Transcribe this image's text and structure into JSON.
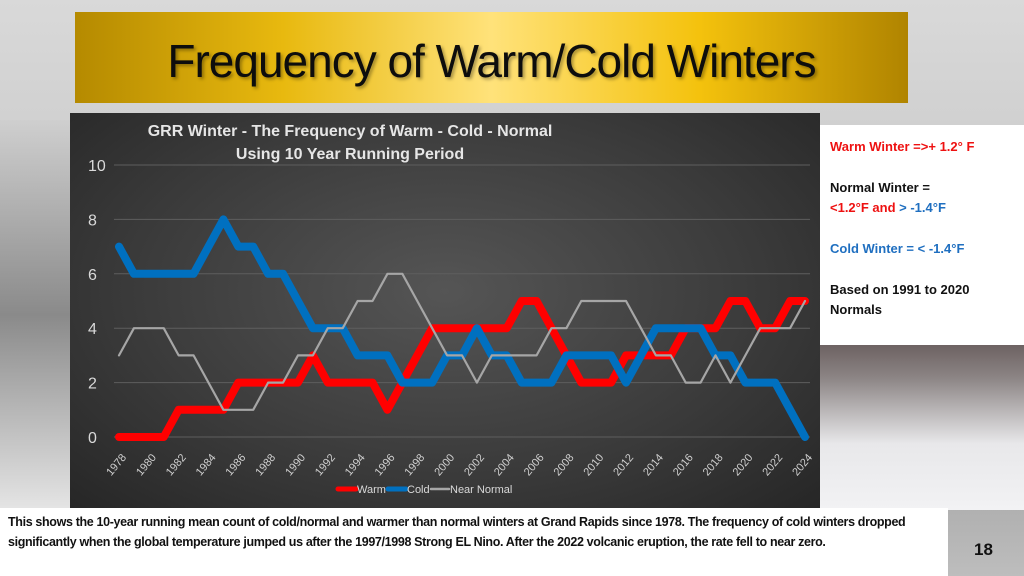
{
  "slide": {
    "title": "Frequency of Warm/Cold Winters",
    "page_number": "18",
    "caption": "This shows the 10-year running mean count of cold/normal and warmer than normal winters at Grand Rapids since 1978. The frequency of cold winters dropped significantly when the global temperature jumped us after the 1997/1998 Strong EL Nino.  After the 2022 volcanic eruption, the rate fell to near zero."
  },
  "info_box": {
    "warm": "Warm Winter =>+ 1.2° F",
    "normal_label": "Normal Winter =",
    "normal_part1": "<1.2°F and ",
    "normal_part2": "> -1.4°F",
    "cold": "Cold Winter = < -1.4°F",
    "basis_line1": "Based on 1991 to 2020",
    "basis_line2": "Normals"
  },
  "chart_data": {
    "type": "line",
    "title_line1": "GRR Winter - The Frequency of  Warm - Cold - Normal",
    "title_line2": "Using 10 Year Running Period",
    "xlabel": "",
    "ylabel": "",
    "ylim": [
      0,
      10
    ],
    "yticks": [
      0,
      2,
      4,
      6,
      8,
      10
    ],
    "grid": true,
    "legend_position": "bottom",
    "x": [
      1978,
      1979,
      1980,
      1981,
      1982,
      1983,
      1984,
      1985,
      1986,
      1987,
      1988,
      1989,
      1990,
      1991,
      1992,
      1993,
      1994,
      1995,
      1996,
      1997,
      1998,
      1999,
      2000,
      2001,
      2002,
      2003,
      2004,
      2005,
      2006,
      2007,
      2008,
      2009,
      2010,
      2011,
      2012,
      2013,
      2014,
      2015,
      2016,
      2017,
      2018,
      2019,
      2020,
      2021,
      2022,
      2023,
      2024
    ],
    "xtick_labels": [
      "1978",
      "1980",
      "1982",
      "1984",
      "1986",
      "1988",
      "1990",
      "1992",
      "1994",
      "1996",
      "1998",
      "2000",
      "2002",
      "2004",
      "2006",
      "2008",
      "2010",
      "2012",
      "2014",
      "2016",
      "2018",
      "2020",
      "2022",
      "2024"
    ],
    "series": [
      {
        "name": "Warm",
        "color": "#ff0000",
        "values": [
          0,
          0,
          0,
          0,
          1,
          1,
          1,
          1,
          2,
          2,
          2,
          2,
          2,
          3,
          2,
          2,
          2,
          2,
          1,
          2,
          3,
          4,
          4,
          4,
          4,
          4,
          4,
          5,
          5,
          4,
          3,
          2,
          2,
          2,
          3,
          3,
          3,
          3,
          4,
          4,
          4,
          5,
          5,
          4,
          4,
          5,
          5
        ]
      },
      {
        "name": "Cold",
        "color": "#0070c0",
        "values": [
          7,
          6,
          6,
          6,
          6,
          6,
          7,
          8,
          7,
          7,
          6,
          6,
          5,
          4,
          4,
          4,
          3,
          3,
          3,
          2,
          2,
          2,
          3,
          3,
          4,
          3,
          3,
          2,
          2,
          2,
          3,
          3,
          3,
          3,
          2,
          3,
          4,
          4,
          4,
          4,
          3,
          3,
          2,
          2,
          2,
          1,
          0
        ]
      },
      {
        "name": "Near Normal",
        "color": "#a6a6a6",
        "values": [
          3,
          4,
          4,
          4,
          3,
          3,
          2,
          1,
          1,
          1,
          2,
          2,
          3,
          3,
          4,
          4,
          5,
          5,
          6,
          6,
          5,
          4,
          3,
          3,
          2,
          3,
          3,
          3,
          3,
          4,
          4,
          5,
          5,
          5,
          5,
          4,
          3,
          3,
          2,
          2,
          3,
          2,
          3,
          4,
          4,
          4,
          5
        ]
      }
    ]
  }
}
